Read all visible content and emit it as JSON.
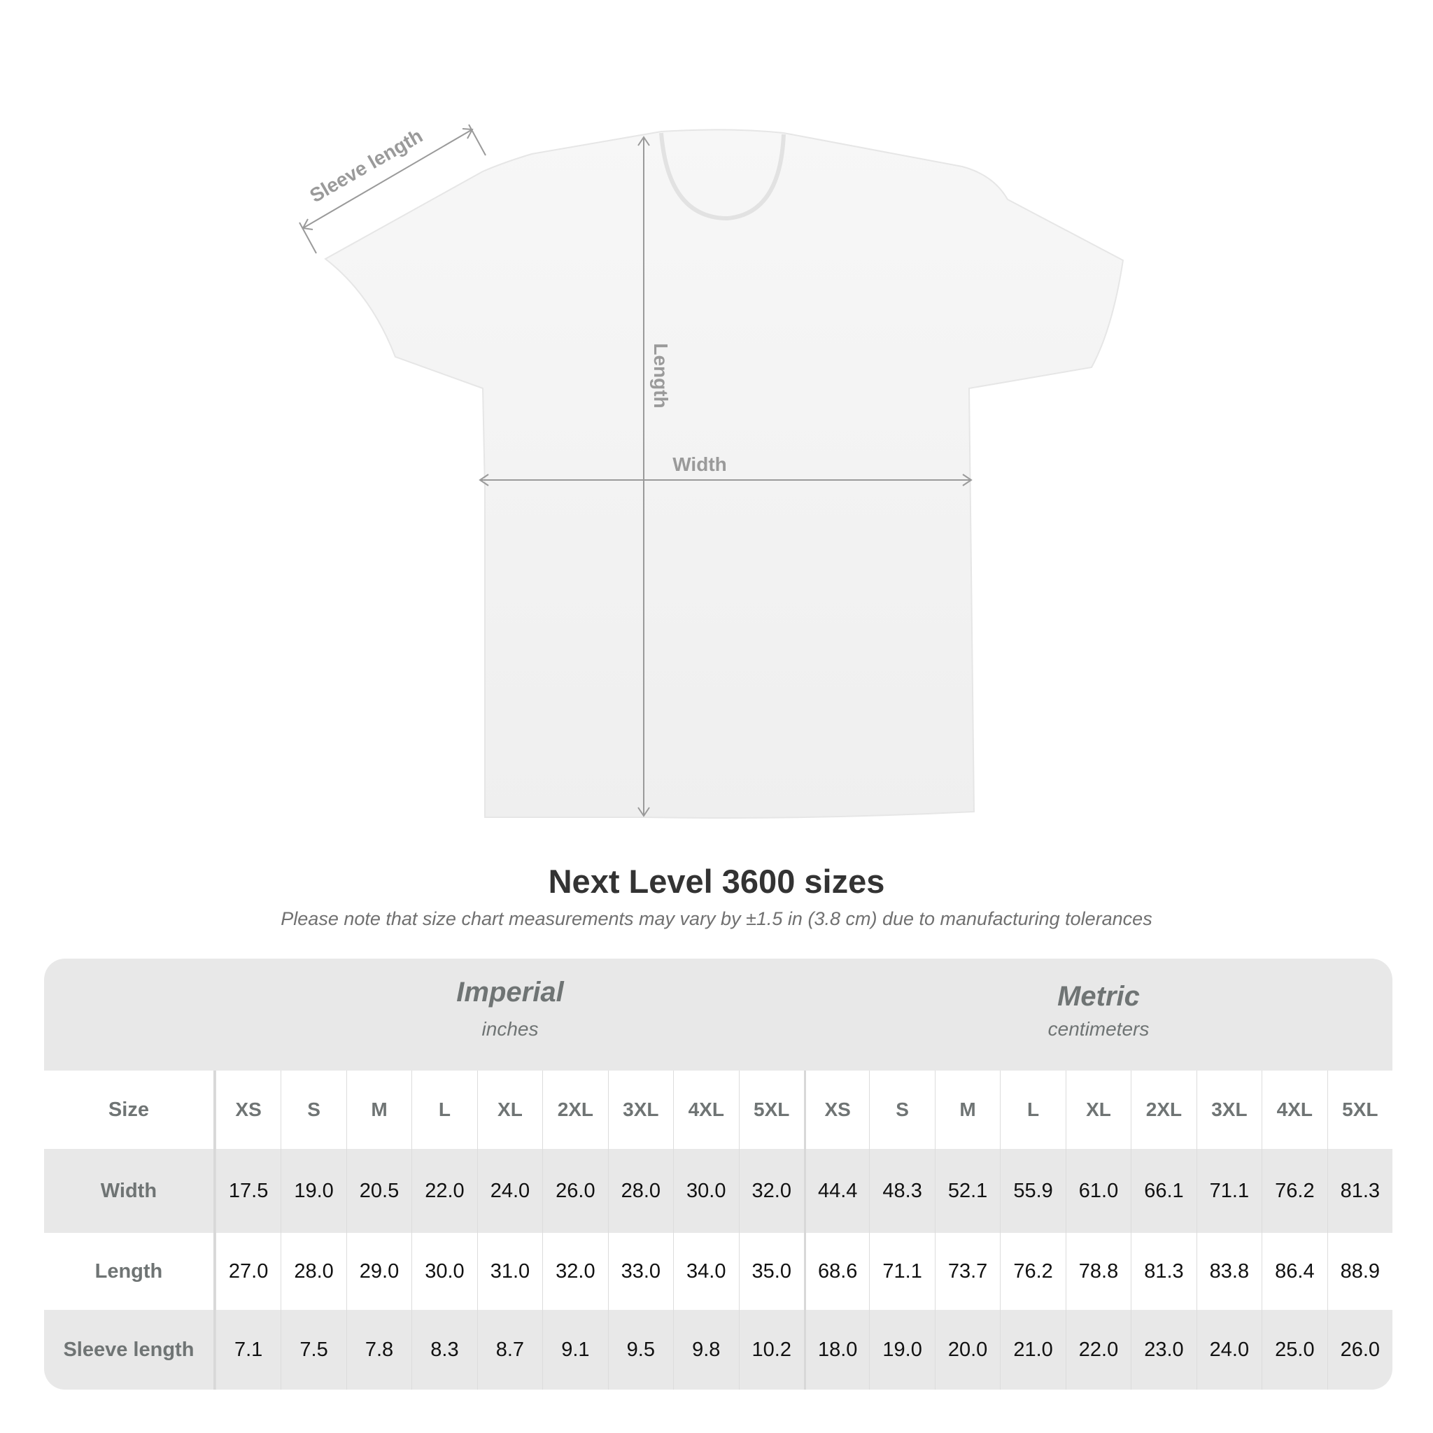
{
  "diagram": {
    "labels": {
      "sleeve": "Sleeve length",
      "length": "Length",
      "width": "Width"
    }
  },
  "title": "Next Level 3600 sizes",
  "note": "Please note that size chart measurements may vary by ±1.5 in (3.8 cm) due to manufacturing tolerances",
  "table": {
    "imperial": {
      "name": "Imperial",
      "unit": "inches"
    },
    "metric": {
      "name": "Metric",
      "unit": "centimeters"
    },
    "size_label": "Size",
    "sizes": [
      "XS",
      "S",
      "M",
      "L",
      "XL",
      "2XL",
      "3XL",
      "4XL",
      "5XL"
    ],
    "rows": [
      {
        "label": "Width",
        "imperial": [
          "17.5",
          "19.0",
          "20.5",
          "22.0",
          "24.0",
          "26.0",
          "28.0",
          "30.0",
          "32.0"
        ],
        "metric": [
          "44.4",
          "48.3",
          "52.1",
          "55.9",
          "61.0",
          "66.1",
          "71.1",
          "76.2",
          "81.3"
        ]
      },
      {
        "label": "Length",
        "imperial": [
          "27.0",
          "28.0",
          "29.0",
          "30.0",
          "31.0",
          "32.0",
          "33.0",
          "34.0",
          "35.0"
        ],
        "metric": [
          "68.6",
          "71.1",
          "73.7",
          "76.2",
          "78.8",
          "81.3",
          "83.8",
          "86.4",
          "88.9"
        ]
      },
      {
        "label": "Sleeve length",
        "imperial": [
          "7.1",
          "7.5",
          "7.8",
          "8.3",
          "8.7",
          "9.1",
          "9.5",
          "9.8",
          "10.2"
        ],
        "metric": [
          "18.0",
          "19.0",
          "20.0",
          "21.0",
          "22.0",
          "23.0",
          "24.0",
          "25.0",
          "26.0"
        ]
      }
    ]
  },
  "colors": {
    "label_gray": "#6f7474",
    "band": "#e8e8e8",
    "arrow": "#9a9a9a"
  }
}
